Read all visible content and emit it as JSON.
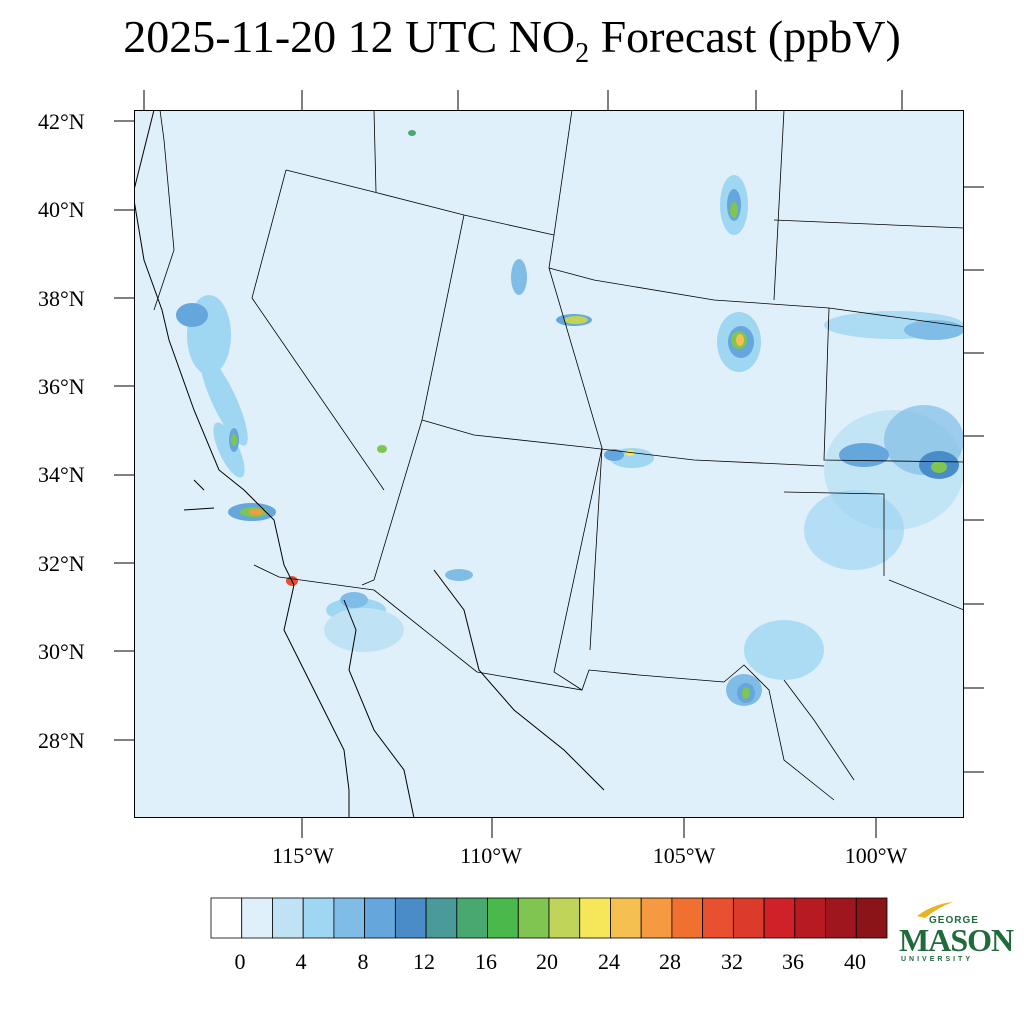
{
  "title": {
    "main": "2025-11-20 12 UTC NO",
    "subscript": "2",
    "suffix": " Forecast (ppbV)"
  },
  "map": {
    "lat_labels": [
      "42°N",
      "40°N",
      "38°N",
      "36°N",
      "34°N",
      "32°N",
      "30°N",
      "28°N"
    ],
    "lon_labels": [
      "115°W",
      "110°W",
      "105°W",
      "100°W"
    ],
    "background_color": "#dff0fa",
    "boundary_color": "#000000"
  },
  "colorbar": {
    "tick_labels": [
      "0",
      "4",
      "8",
      "12",
      "16",
      "20",
      "24",
      "28",
      "32",
      "36",
      "40"
    ],
    "colors": [
      "#ffffff",
      "#dff0fa",
      "#bfe3f5",
      "#9fd6f2",
      "#80bde6",
      "#65a6dc",
      "#4a8cc8",
      "#4a9a9a",
      "#48a870",
      "#4ab84a",
      "#80c452",
      "#c0d45a",
      "#f5e65a",
      "#f5c050",
      "#f59a40",
      "#f07030",
      "#e85030",
      "#dc3a2a",
      "#d02028",
      "#b81a22",
      "#a0161e",
      "#8a1418"
    ]
  },
  "logo": {
    "george": "GEORGE",
    "mason": "MASON",
    "university": "UNIVERSITY",
    "color": "#1f6b3a",
    "accent": "#e8b420"
  }
}
